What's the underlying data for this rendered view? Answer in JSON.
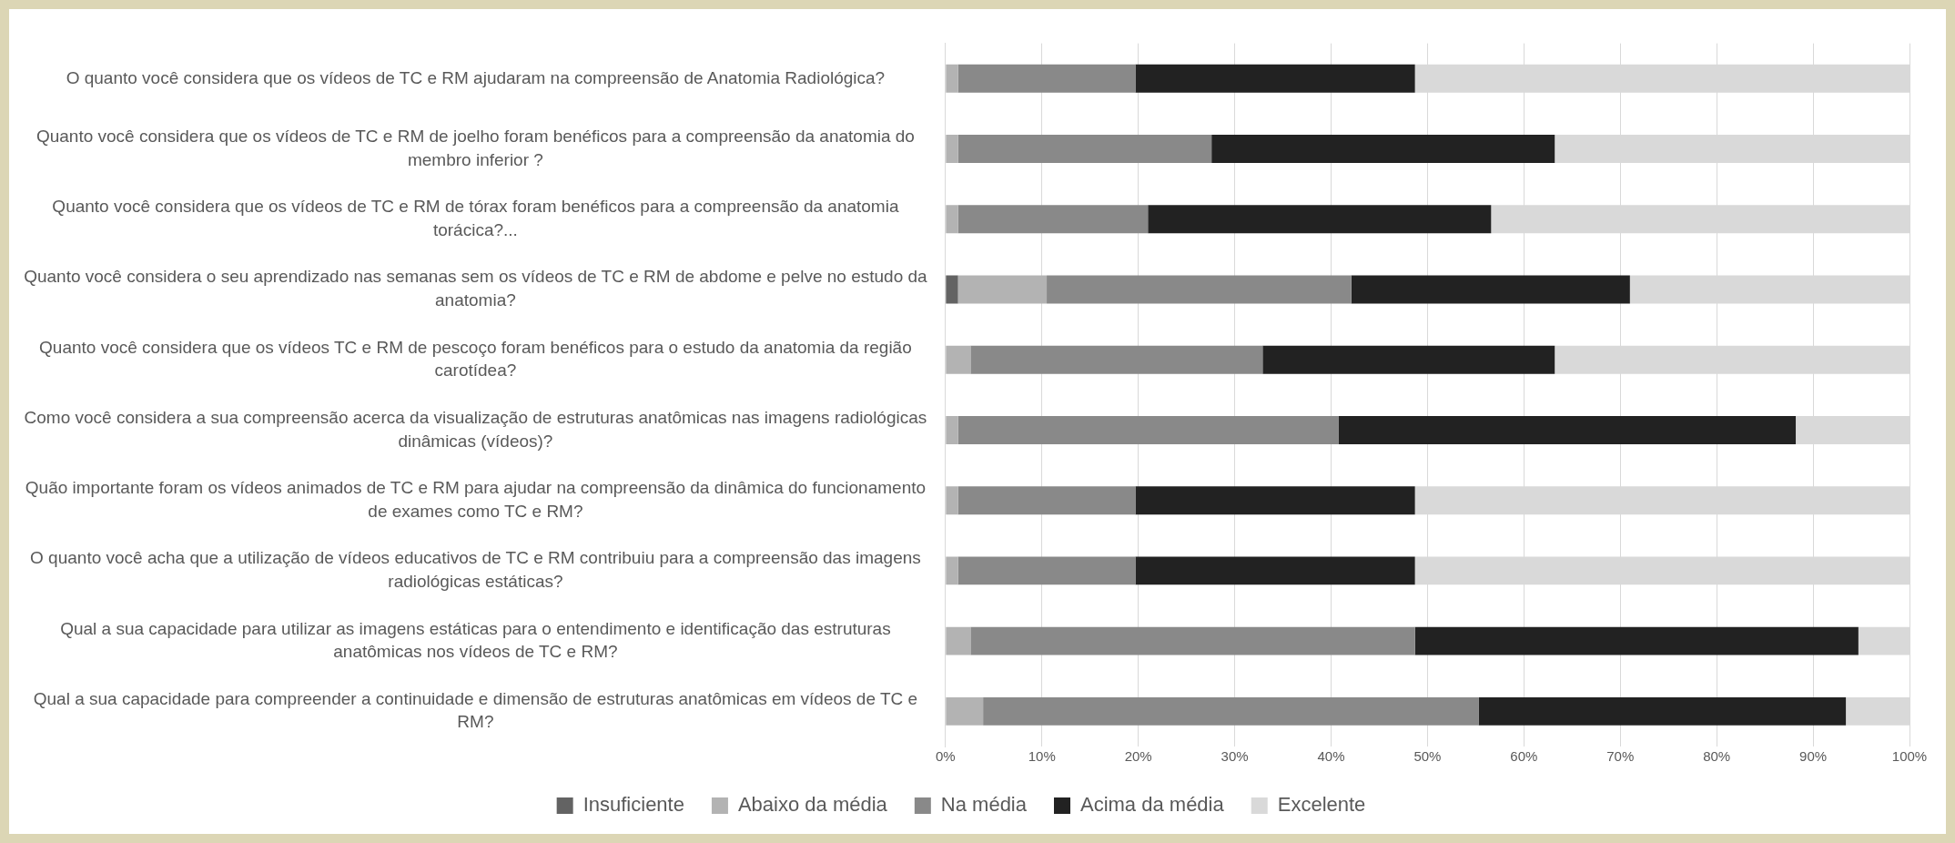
{
  "chart_data": {
    "type": "bar",
    "orientation": "horizontal",
    "stacked": true,
    "categories": [
      "O quanto você considera que os vídeos de TC e RM ajudaram na compreensão de Anatomia Radiológica?",
      "Quanto você considera que os vídeos de TC e RM de joelho foram benéficos para a compreensão da anatomia do membro inferior ?",
      "Quanto você considera que os vídeos de TC e RM de tórax foram benéficos para a compreensão da anatomia torácica?...",
      "Quanto você considera o seu aprendizado nas semanas sem os vídeos de TC e RM de abdome e pelve no estudo da anatomia?",
      "Quanto você considera que os vídeos TC e RM de pescoço foram benéficos para o estudo da anatomia da região carotídea?",
      "Como você considera a sua compreensão acerca da visualização de estruturas anatômicas nas imagens radiológicas dinâmicas (vídeos)?",
      "Quão importante foram os vídeos animados de TC e RM para ajudar na compreensão da dinâmica do funcionamento de exames como TC e RM?",
      "O quanto você acha que a utilização de vídeos educativos de TC e RM contribuiu para a compreensão das imagens radiológicas estáticas?",
      "Qual a sua capacidade para utilizar as imagens estáticas para o entendimento e identificação das estruturas anatômicas nos vídeos de TC e RM?",
      "Qual a sua capacidade para compreender a continuidade e dimensão de estruturas anatômicas em vídeos de TC e RM?"
    ],
    "series": [
      {
        "name": "Insuficiente",
        "color": "#636363",
        "values": [
          0,
          0,
          0,
          1.3,
          0,
          0,
          0,
          0,
          0,
          0
        ]
      },
      {
        "name": "Abaixo da média",
        "color": "#b3b3b3",
        "values": [
          1.3,
          1.3,
          1.3,
          9.2,
          2.6,
          1.3,
          1.3,
          1.3,
          2.6,
          3.9
        ]
      },
      {
        "name": "Na média",
        "color": "#898989",
        "values": [
          18.4,
          26.3,
          19.7,
          31.6,
          30.3,
          39.5,
          18.4,
          18.4,
          46.1,
          51.4
        ]
      },
      {
        "name": "Acima da média",
        "color": "#222222",
        "values": [
          29.0,
          35.6,
          35.6,
          28.9,
          30.3,
          47.4,
          29.0,
          29.0,
          46.0,
          38.1
        ]
      },
      {
        "name": "Excelente",
        "color": "#d9d9d9",
        "values": [
          51.3,
          36.8,
          43.4,
          29.0,
          36.8,
          11.8,
          51.3,
          51.3,
          5.3,
          6.6
        ]
      }
    ],
    "xlim": [
      0,
      100
    ],
    "xticks": [
      {
        "value": 0,
        "label": "0%"
      },
      {
        "value": 10,
        "label": "10%"
      },
      {
        "value": 20,
        "label": "20%"
      },
      {
        "value": 30,
        "label": "30%"
      },
      {
        "value": 40,
        "label": "40%"
      },
      {
        "value": 50,
        "label": "50%"
      },
      {
        "value": 60,
        "label": "60%"
      },
      {
        "value": 70,
        "label": "70%"
      },
      {
        "value": 80,
        "label": "80%"
      },
      {
        "value": 90,
        "label": "90%"
      },
      {
        "value": 100,
        "label": "100%"
      }
    ],
    "grid": "x",
    "legend": "bottom"
  }
}
